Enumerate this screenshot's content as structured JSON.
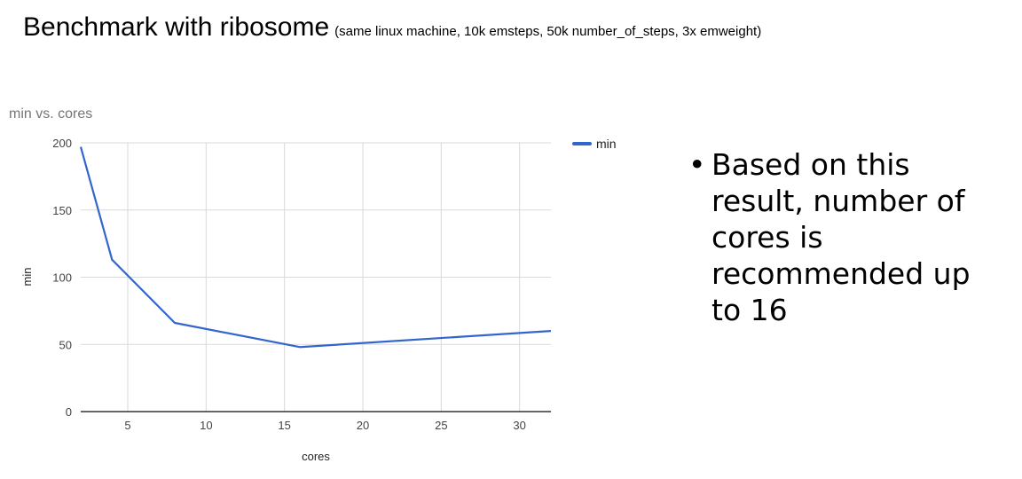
{
  "slide": {
    "title": "Benchmark with ribosome",
    "subtitle": "(same linux machine, 10k emsteps, 50k number_of_steps, 3x emweight)",
    "bullet": "Based on this result, number of cores is recommended up to 16"
  },
  "chart_data": {
    "type": "line",
    "title": "min vs. cores",
    "xlabel": "cores",
    "ylabel": "min",
    "xlim": [
      2,
      32
    ],
    "ylim": [
      0,
      200
    ],
    "xticks": [
      5,
      10,
      15,
      20,
      25,
      30
    ],
    "yticks": [
      0,
      50,
      100,
      150,
      200
    ],
    "grid": true,
    "legend_position": "right",
    "series": [
      {
        "name": "min",
        "color": "#3366cc",
        "x": [
          2,
          4,
          8,
          16,
          32
        ],
        "y": [
          197,
          113,
          66,
          48,
          60
        ]
      }
    ]
  }
}
